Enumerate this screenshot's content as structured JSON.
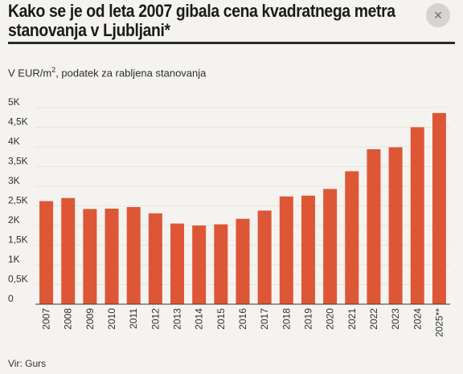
{
  "header": {
    "title_line1": "Kako se je od leta 2007 gibala cena kvadratnega metra",
    "title_line2": "stanovanja v Ljubljani*",
    "close_symbol": "×"
  },
  "subtitle": {
    "prefix": "V EUR/m",
    "superscript": "2",
    "suffix": ", podatek za rabljena stanovanja"
  },
  "source": "Vir: Gurs",
  "colors": {
    "bar": "#dd5736",
    "grid": "#e6e4de",
    "axis": "#3a3a3a"
  },
  "chart_data": {
    "type": "bar",
    "title": "Kako se je od leta 2007 gibala cena kvadratnega metra stanovanja v Ljubljani*",
    "subtitle": "V EUR/m2, podatek za rabljena stanovanja",
    "categories": [
      "2007",
      "2008",
      "2009",
      "2010",
      "2011",
      "2012",
      "2013",
      "2014",
      "2015",
      "2016",
      "2017",
      "2018",
      "2019",
      "2020",
      "2021",
      "2022",
      "2023",
      "2024",
      "2025**"
    ],
    "values": [
      2620,
      2700,
      2420,
      2430,
      2470,
      2310,
      2050,
      2000,
      2030,
      2170,
      2380,
      2740,
      2760,
      2930,
      3380,
      3940,
      3990,
      4500,
      4860
    ],
    "ylim": [
      0,
      5000
    ],
    "yticks": [
      0,
      500,
      1000,
      1500,
      2000,
      2500,
      3000,
      3500,
      4000,
      4500,
      5000
    ],
    "ytick_labels": [
      "0",
      "0,5K",
      "1K",
      "1,5K",
      "2K",
      "2,5K",
      "3K",
      "3,5K",
      "4K",
      "4,5K",
      "5K"
    ],
    "xlabel": "",
    "ylabel": "",
    "grid": true
  }
}
